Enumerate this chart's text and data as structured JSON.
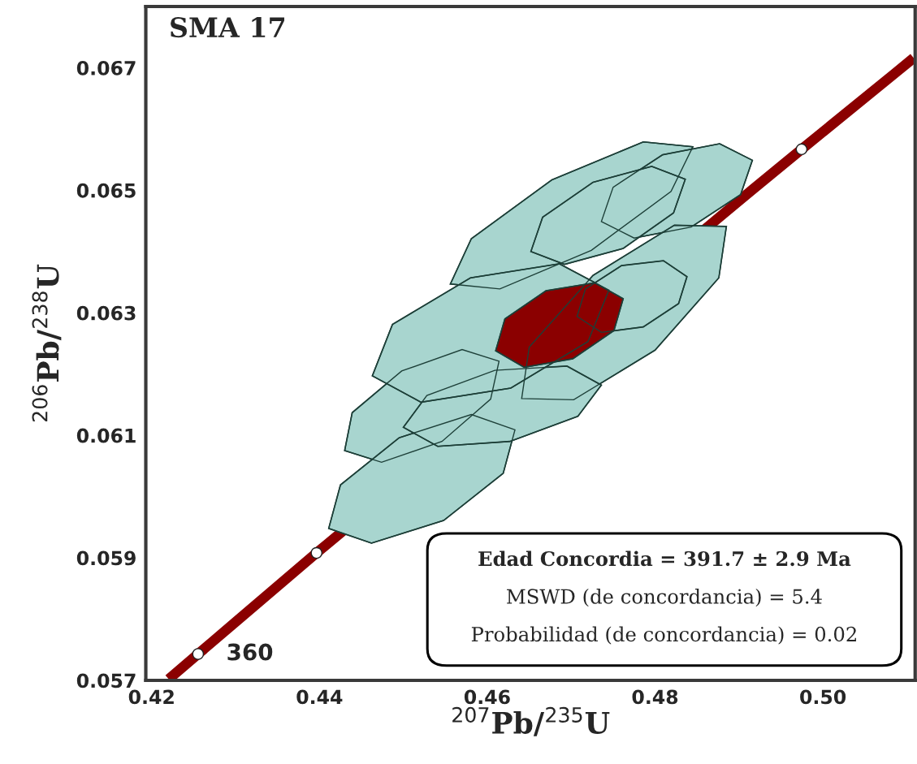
{
  "chart_data": {
    "type": "line",
    "title": "SMA 17",
    "xlabel": "$^{207}$Pb/$^{235}$U",
    "ylabel": "$^{206}$Pb/$^{238}$U",
    "xlim": [
      0.4193,
      0.511
    ],
    "ylim": [
      0.057,
      0.068
    ],
    "xticks": [
      0.42,
      0.44,
      0.46,
      0.48,
      {
        "value": 0.5,
        "label": "0.50"
      }
    ],
    "yticks": [
      0.057,
      0.059,
      0.061,
      0.063,
      0.065,
      0.067
    ],
    "series": [
      {
        "type": "line",
        "color": "#8b0000",
        "x": [
          0.42203,
          0.42553,
          0.43965,
          0.44106,
          0.4916,
          0.49746,
          0.50859,
          0.51082
        ],
        "values": [
          0.05702,
          0.05743,
          0.05908,
          0.05924,
          0.06501,
          0.06567,
          0.06691,
          0.06716
        ]
      },
      {
        "type": "area",
        "color": "#a8d5cf",
        "x": [
          0.4845,
          0.4786,
          0.4677,
          0.4581,
          0.4556,
          0.4615,
          0.4724,
          0.4819
        ],
        "values": [
          0.06571,
          0.06579,
          0.06517,
          0.06421,
          0.06347,
          0.06339,
          0.06402,
          0.06498
        ]
      },
      {
        "type": "area",
        "color": "#a8d5cf",
        "x": [
          0.4916,
          0.4877,
          0.4809,
          0.475,
          0.4736,
          0.4775,
          0.4843,
          0.4902
        ],
        "values": [
          0.06549,
          0.06576,
          0.06558,
          0.06505,
          0.06449,
          0.06422,
          0.0644,
          0.06493
        ]
      },
      {
        "type": "area",
        "color": "#a8d5cf",
        "x": [
          0.4836,
          0.4796,
          0.4726,
          0.4666,
          0.4652,
          0.4692,
          0.4762,
          0.4822
        ],
        "values": [
          0.06518,
          0.06539,
          0.06513,
          0.06456,
          0.064,
          0.06379,
          0.06405,
          0.06463
        ]
      },
      {
        "type": "area",
        "color": "#a8d5cf",
        "x": [
          0.4885,
          0.4823,
          0.4726,
          0.465,
          0.4641,
          0.4703,
          0.48,
          0.4876
        ],
        "values": [
          0.06441,
          0.06443,
          0.06361,
          0.06244,
          0.0616,
          0.06158,
          0.06239,
          0.06357
        ]
      },
      {
        "type": "area",
        "color": "#a8d5cf",
        "x": [
          0.4614,
          0.457,
          0.4498,
          0.4439,
          0.443,
          0.4474,
          0.4546,
          0.4604
        ],
        "values": [
          0.06221,
          0.0624,
          0.06205,
          0.06137,
          0.06075,
          0.06056,
          0.0609,
          0.06159
        ]
      },
      {
        "type": "area",
        "color": "#a8d5cf",
        "x": [
          0.4633,
          0.4581,
          0.4495,
          0.4425,
          0.4411,
          0.4462,
          0.4548,
          0.4619
        ],
        "values": [
          0.06109,
          0.06134,
          0.06096,
          0.06019,
          0.05948,
          0.05924,
          0.05961,
          0.06038
        ]
      },
      {
        "type": "area",
        "color": "#a8d5cf",
        "x": [
          0.4736,
          0.4695,
          0.4609,
          0.4528,
          0.45,
          0.4541,
          0.4627,
          0.4708
        ],
        "values": [
          0.06182,
          0.06213,
          0.06206,
          0.06165,
          0.06113,
          0.06082,
          0.0609,
          0.06131
        ]
      },
      {
        "type": "area",
        "color": "#a8d5cf",
        "x": [
          0.4745,
          0.4686,
          0.458,
          0.4487,
          0.4463,
          0.4521,
          0.4628,
          0.472
        ],
        "values": [
          0.06337,
          0.0638,
          0.06357,
          0.06281,
          0.06197,
          0.06154,
          0.06177,
          0.06253
        ]
      },
      {
        "type": "area",
        "color": "#a8d5cf",
        "x": [
          0.4838,
          0.481,
          0.476,
          0.4717,
          0.4707,
          0.4736,
          0.4786,
          0.4828
        ],
        "values": [
          0.06359,
          0.06385,
          0.06377,
          0.06339,
          0.06294,
          0.06268,
          0.06277,
          0.06315
        ]
      },
      {
        "type": "area",
        "color": "#8b0000",
        "x": [
          0.4762,
          0.4728,
          0.467,
          0.4621,
          0.461,
          0.4644,
          0.4702,
          0.4751
        ],
        "values": [
          0.06323,
          0.06349,
          0.06336,
          0.0629,
          0.06238,
          0.06211,
          0.06225,
          0.06271
        ]
      },
      {
        "type": "scatter",
        "color": "#ffffff",
        "marker": "circle",
        "x": [
          0.42553,
          0.43965,
          0.49746
        ],
        "values": [
          0.05743,
          0.05908,
          0.06567
        ]
      }
    ],
    "annotations": [
      {
        "text": "360",
        "x": 0.42553,
        "y": 0.05743
      },
      "Edad Concordia = 391.7 ± 2.9 Ma",
      "MSWD (de concordancia) = 5.4",
      "Probabilidad (de concordancia) = 0.02"
    ]
  }
}
